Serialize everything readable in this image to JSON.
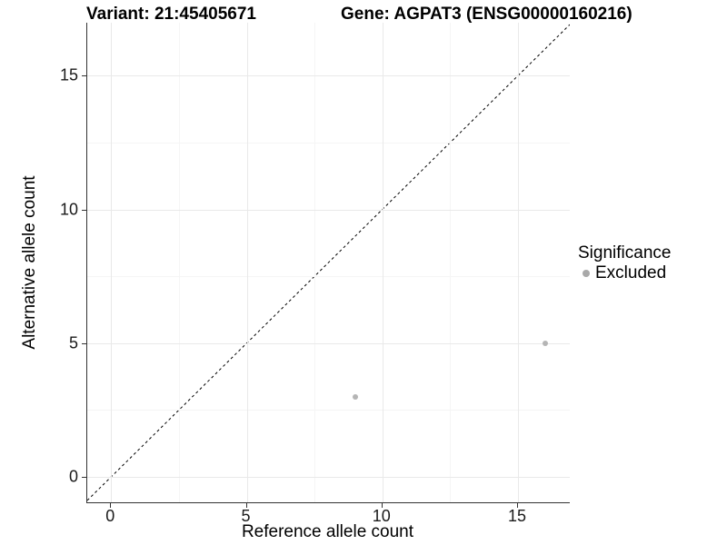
{
  "header": {
    "variant_title": "Variant: 21:45405671",
    "gene_title": "Gene: AGPAT3 (ENSG00000160216)"
  },
  "chart_data": {
    "type": "scatter",
    "title": "Variant: 21:45405671  Gene: AGPAT3 (ENSG00000160216)",
    "xlabel": "Reference allele count",
    "ylabel": "Alternative allele count",
    "x_ticks": [
      0,
      5,
      10,
      15
    ],
    "y_ticks": [
      0,
      5,
      10,
      15
    ],
    "x_minor_ticks": [
      2.5,
      7.5,
      12.5
    ],
    "y_minor_ticks": [
      2.5,
      7.5,
      12.5
    ],
    "xlim": [
      -0.88,
      16.91
    ],
    "ylim": [
      -0.95,
      16.98
    ],
    "grid": true,
    "series": [
      {
        "name": "Excluded",
        "color": "#b5b5b5",
        "points": [
          {
            "x": 9,
            "y": 3
          },
          {
            "x": 16,
            "y": 5
          }
        ]
      }
    ],
    "reference_line": {
      "slope": 1,
      "intercept": 0,
      "style": "dashed",
      "color": "#000000"
    },
    "legend": {
      "title": "Significance",
      "position": "right",
      "items": [
        {
          "label": "Excluded",
          "color": "#a9a9a9"
        }
      ]
    },
    "colors": {
      "grid_major": "#e9e9e9",
      "grid_minor": "#f5f5f5",
      "axis_line": "#333333"
    }
  }
}
